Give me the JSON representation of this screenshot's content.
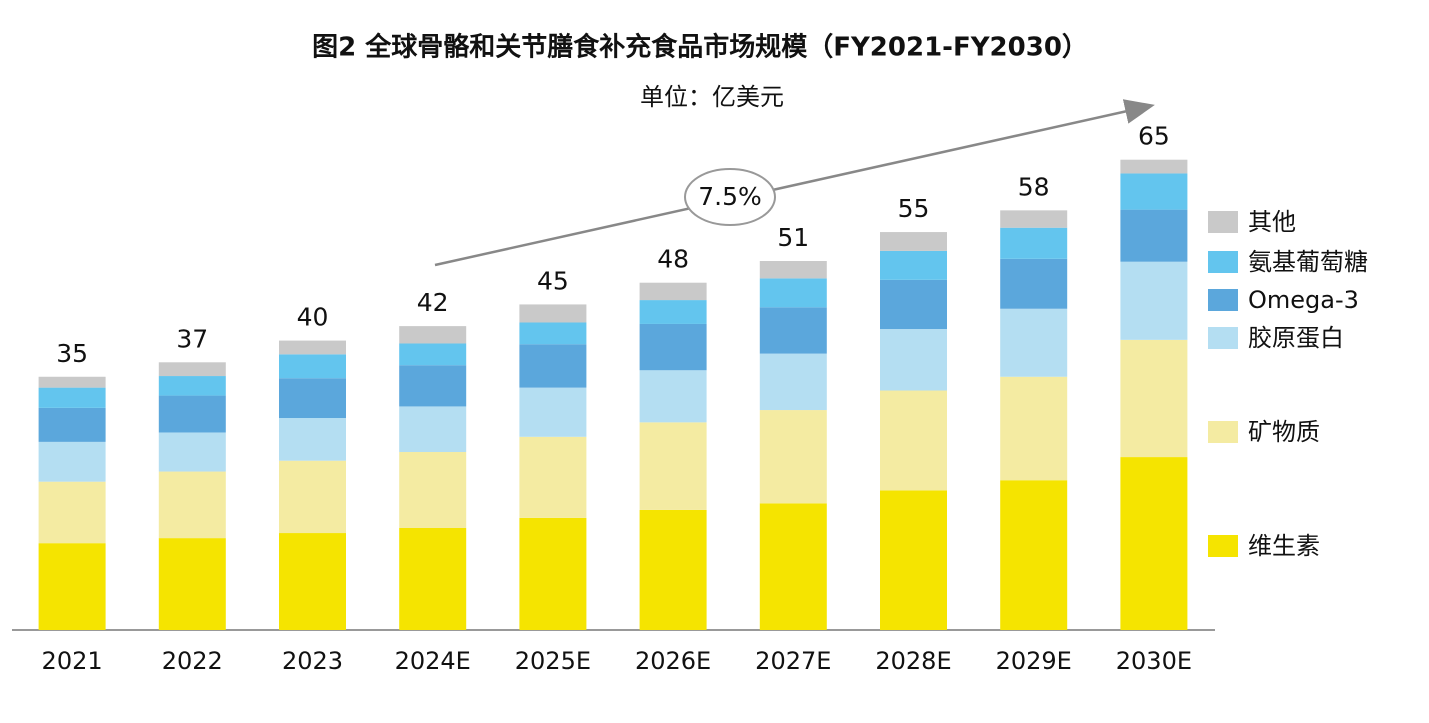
{
  "chart_data": {
    "type": "stacked_bar",
    "title": "图2 全球骨骼和关节膳食补充食品市场规模（FY2021-FY2030）",
    "subtitle": "单位：亿美元",
    "annotation": "7.5%",
    "categories": [
      "2021",
      "2022",
      "2023",
      "2024E",
      "2025E",
      "2026E",
      "2027E",
      "2028E",
      "2029E",
      "2030E"
    ],
    "series": [
      {
        "name": "维生素",
        "color": "#f5e400",
        "values": [
          12,
          12.7,
          13.4,
          14.1,
          15.5,
          16.6,
          17.5,
          19.3,
          20.7,
          23.9
        ]
      },
      {
        "name": "矿物质",
        "color": "#f4eba2",
        "values": [
          8.5,
          9.2,
          10,
          10.5,
          11.2,
          12.1,
          12.9,
          13.8,
          14.3,
          16.2
        ]
      },
      {
        "name": "胶原蛋白",
        "color": "#b4def2",
        "values": [
          5.5,
          5.4,
          5.9,
          6.3,
          6.8,
          7.2,
          7.8,
          8.5,
          9.4,
          10.8
        ]
      },
      {
        "name": "Omega-3",
        "color": "#5ba7dc",
        "values": [
          4.7,
          5.1,
          5.5,
          5.7,
          6.0,
          6.4,
          6.4,
          6.8,
          6.9,
          7.2
        ]
      },
      {
        "name": "氨基葡萄糖",
        "color": "#63c5ee",
        "values": [
          2.8,
          2.7,
          3.3,
          3.0,
          3.0,
          3.3,
          4.0,
          4.0,
          4.3,
          5.0
        ]
      },
      {
        "name": "其他",
        "color": "#c9c9c9",
        "values": [
          1.5,
          1.9,
          1.9,
          2.4,
          2.5,
          2.4,
          2.4,
          2.6,
          2.4,
          1.9
        ]
      }
    ],
    "totals": [
      35,
      37,
      40,
      42,
      45,
      48,
      51,
      55,
      58,
      65
    ],
    "ylim": [
      0,
      68
    ]
  }
}
